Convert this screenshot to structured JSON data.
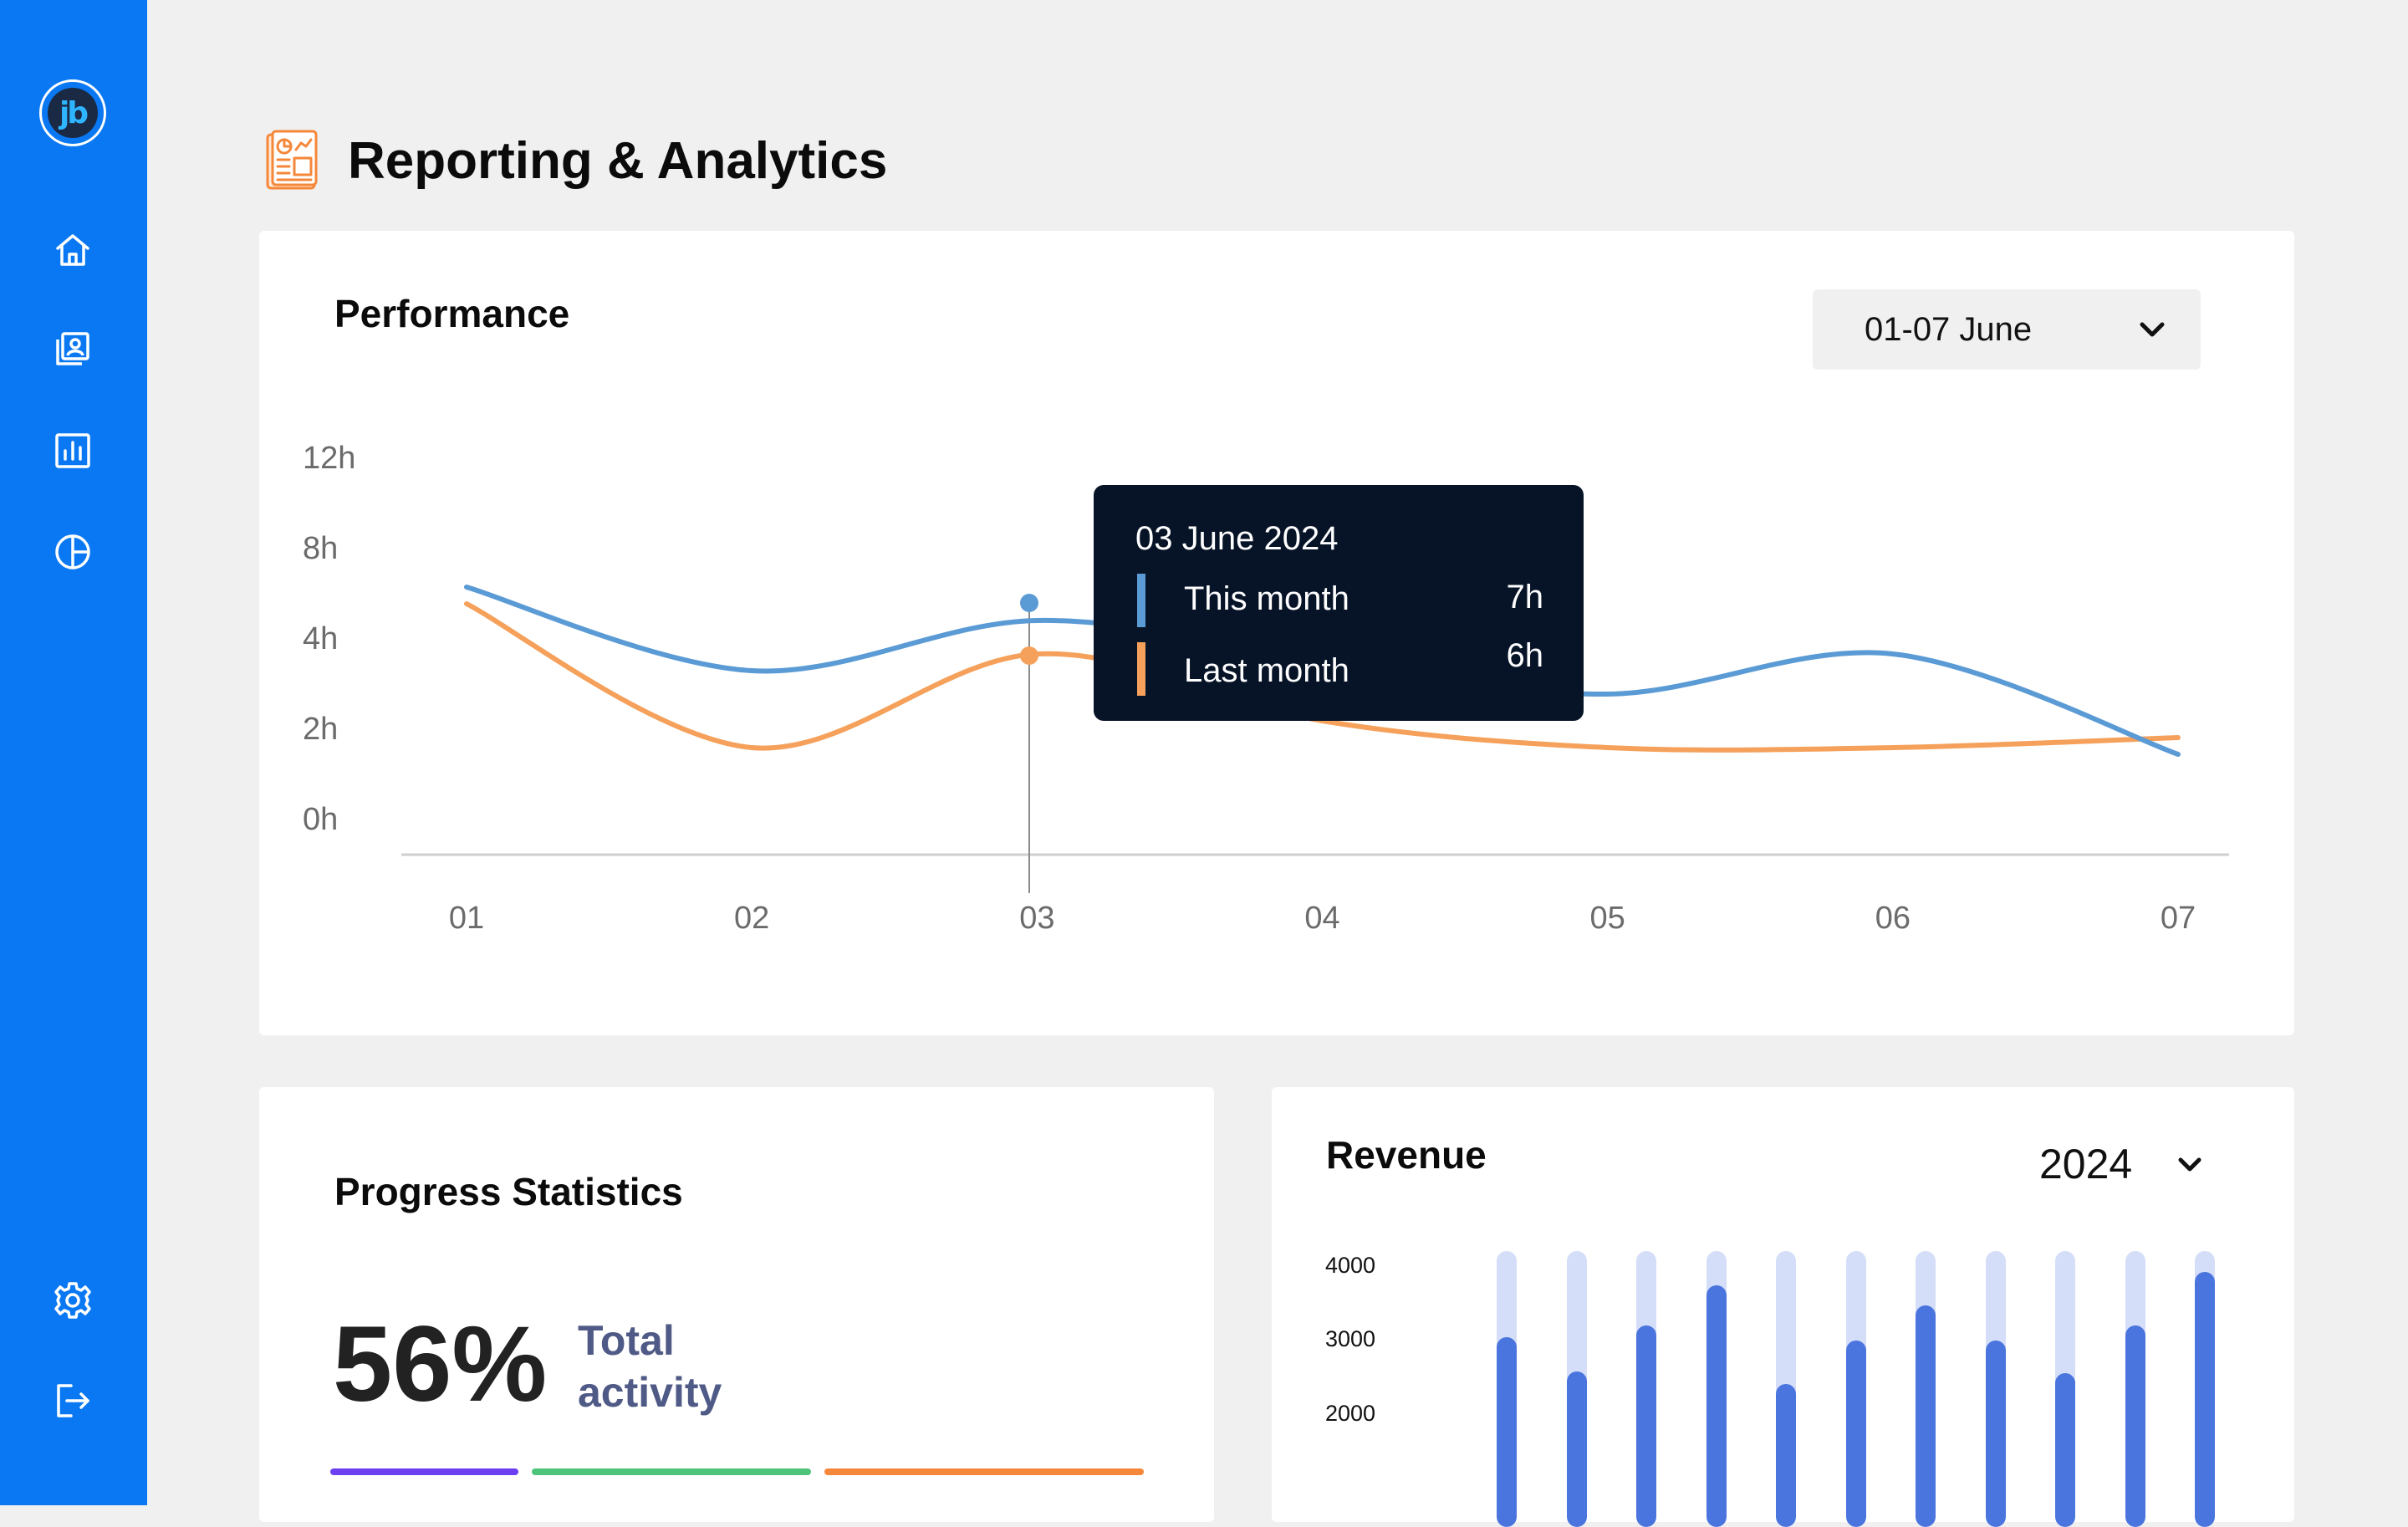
{
  "app": {
    "logo_text": "jb",
    "nav": [
      {
        "icon": "home-icon"
      },
      {
        "icon": "contacts-icon"
      },
      {
        "icon": "bar-chart-icon"
      },
      {
        "icon": "pie-chart-icon"
      },
      {
        "icon": "gear-icon"
      },
      {
        "icon": "logout-icon"
      }
    ],
    "accent": "#0a78f2"
  },
  "page": {
    "title": "Reporting & Analytics",
    "title_icon": "report-icon"
  },
  "performance": {
    "title": "Performance",
    "range_value": "01-07 June",
    "tooltip": {
      "date": "03 June 2024",
      "rows": [
        {
          "label": "This month",
          "value": "7h",
          "color": "#5b9bd5"
        },
        {
          "label": "Last month",
          "value": "6h",
          "color": "#f5a15b"
        }
      ]
    }
  },
  "chart_data": {
    "type": "line",
    "x": [
      "01",
      "02",
      "03",
      "04",
      "05",
      "06",
      "07"
    ],
    "y_ticks": [
      "12h",
      "8h",
      "4h",
      "2h",
      "0h"
    ],
    "series": [
      {
        "name": "This month",
        "color": "#5b9bd5",
        "values": [
          8,
          5.5,
          7,
          5.8,
          4.8,
          6,
          3
        ]
      },
      {
        "name": "Last month",
        "color": "#f5a15b",
        "values": [
          7.5,
          3.2,
          6,
          4,
          3.2,
          3.2,
          3.5
        ]
      }
    ],
    "highlight_x": "03",
    "grid": false
  },
  "progress": {
    "title": "Progress Statistics",
    "percent": "56%",
    "label": "Total activity",
    "segments": [
      {
        "color": "#6c3ff0",
        "share": 0.23
      },
      {
        "color": "#4ec47a",
        "share": 0.34
      },
      {
        "color": "#f5873a",
        "share": 0.39
      }
    ]
  },
  "revenue": {
    "title": "Revenue",
    "year": "2024",
    "y_ticks": [
      "4000",
      "3000",
      "2000"
    ],
    "chart_data": {
      "type": "bar",
      "values": [
        3100,
        2600,
        3270,
        3840,
        2420,
        3050,
        3560,
        3050,
        2580,
        3270,
        4040
      ],
      "max": 4200
    }
  }
}
